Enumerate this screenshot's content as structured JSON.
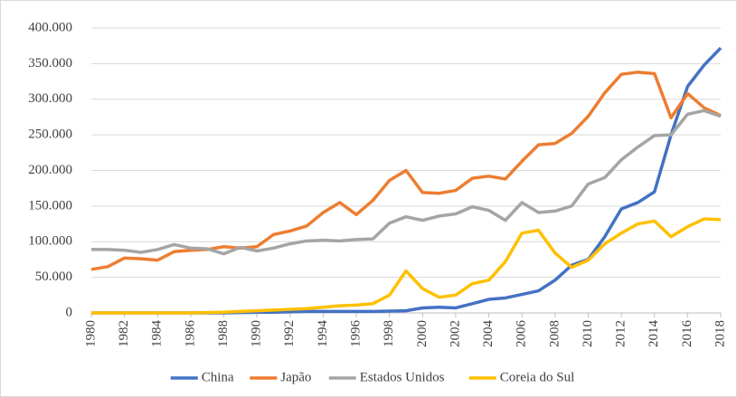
{
  "chart_data": {
    "type": "line",
    "x": [
      1980,
      1981,
      1982,
      1983,
      1984,
      1985,
      1986,
      1987,
      1988,
      1989,
      1990,
      1991,
      1992,
      1993,
      1994,
      1995,
      1996,
      1997,
      1998,
      1999,
      2000,
      2001,
      2002,
      2003,
      2004,
      2005,
      2006,
      2007,
      2008,
      2009,
      2010,
      2011,
      2012,
      2013,
      2014,
      2015,
      2016,
      2017,
      2018
    ],
    "xlim": [
      1980,
      2018
    ],
    "xticks": [
      1980,
      1982,
      1984,
      1986,
      1988,
      1990,
      1992,
      1994,
      1996,
      1998,
      2000,
      2002,
      2004,
      2006,
      2008,
      2010,
      2012,
      2014,
      2016,
      2018
    ],
    "ylim": [
      0,
      400000
    ],
    "yticks": [
      0,
      {
        "value": 50000,
        "label": "50.000"
      },
      {
        "value": 100000,
        "label": "100.000"
      },
      {
        "value": 150000,
        "label": "150.000"
      },
      {
        "value": 200000,
        "label": "200.000"
      },
      {
        "value": 250000,
        "label": "250.000"
      },
      {
        "value": 300000,
        "label": "300.000"
      },
      {
        "value": 350000,
        "label": "350.000"
      },
      {
        "value": 400000,
        "label": "400.000"
      }
    ],
    "grid": true,
    "legend": "bottom",
    "series": [
      {
        "name": "China",
        "color": "#4472c4",
        "values": [
          0,
          0,
          0,
          0,
          0,
          0,
          0,
          0,
          0,
          500,
          800,
          1000,
          1500,
          2000,
          2000,
          2000,
          2000,
          2000,
          2500,
          3000,
          7000,
          8000,
          7000,
          13000,
          19000,
          21000,
          26000,
          31000,
          46000,
          67000,
          75000,
          107000,
          146000,
          155000,
          170000,
          250000,
          318000,
          348000,
          372000
        ]
      },
      {
        "name": "Japão",
        "color": "#ed7d31",
        "values": [
          61000,
          65000,
          77000,
          76000,
          74000,
          86000,
          88000,
          89000,
          93000,
          91000,
          93000,
          110000,
          115000,
          122000,
          141000,
          155000,
          138000,
          158000,
          186000,
          200000,
          169000,
          168000,
          172000,
          189000,
          192000,
          188000,
          213000,
          236000,
          238000,
          252000,
          276000,
          309000,
          335000,
          338000,
          336000,
          274000,
          308000,
          288000,
          277000
        ]
      },
      {
        "name": "Estados Unidos",
        "color": "#a5a5a5",
        "values": [
          89000,
          89000,
          88000,
          85000,
          89000,
          96000,
          91000,
          90000,
          83000,
          92000,
          87000,
          91000,
          97000,
          101000,
          102000,
          101000,
          103000,
          104000,
          126000,
          135000,
          130000,
          136000,
          139000,
          149000,
          144000,
          130000,
          155000,
          141000,
          143000,
          150000,
          181000,
          190000,
          215000,
          233000,
          249000,
          250000,
          279000,
          284000,
          276000
        ]
      },
      {
        "name": "Coreia do Sul",
        "color": "#ffc000",
        "values": [
          0,
          0,
          0,
          0,
          0,
          0,
          0,
          500,
          1000,
          2000,
          3000,
          4000,
          5000,
          6000,
          8000,
          10000,
          11000,
          13000,
          25000,
          59000,
          34000,
          22000,
          25000,
          41000,
          46000,
          72000,
          112000,
          116000,
          84000,
          64000,
          74000,
          97000,
          112000,
          125000,
          129000,
          107000,
          121000,
          132000,
          131000
        ]
      }
    ]
  }
}
